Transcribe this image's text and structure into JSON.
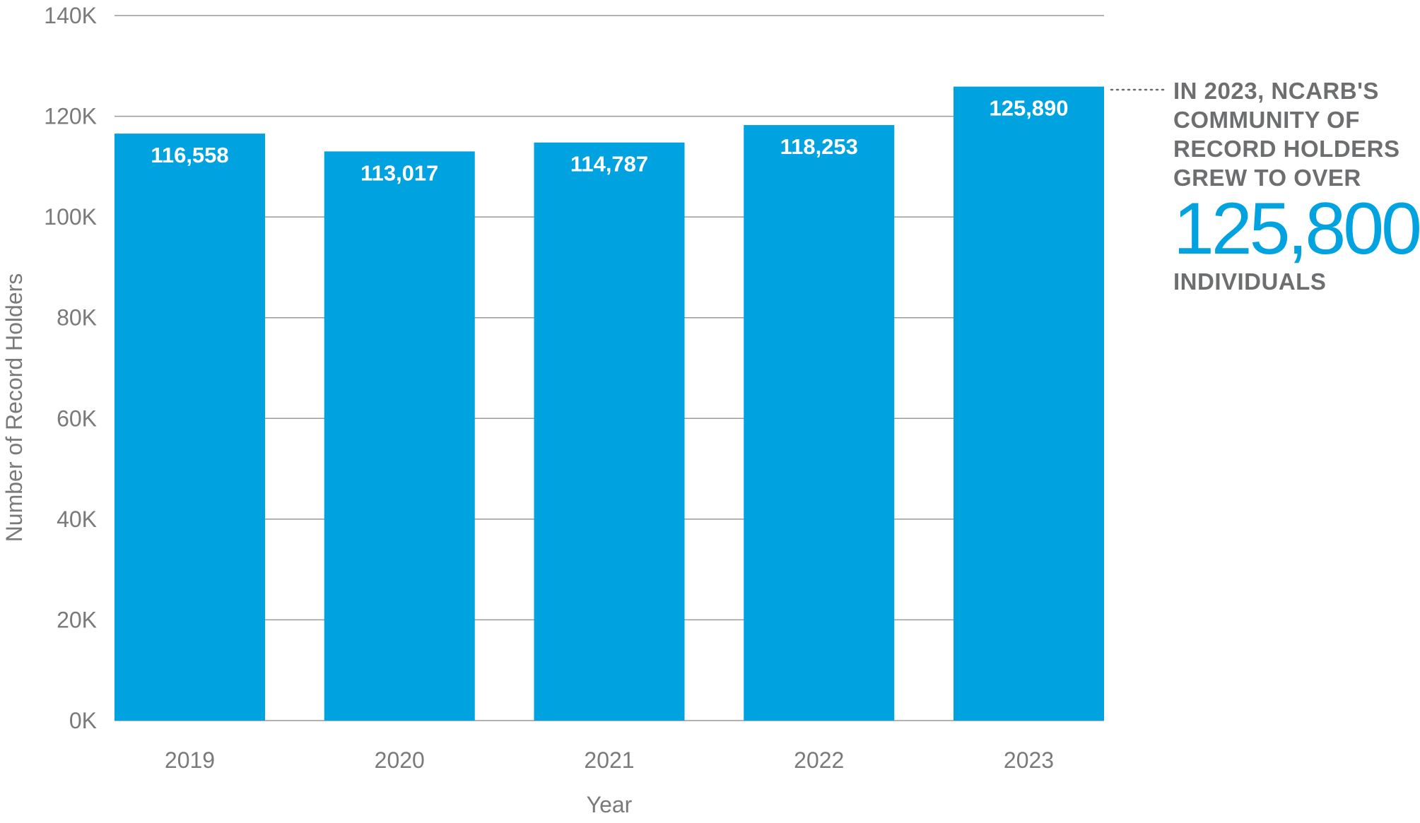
{
  "chart_data": {
    "type": "bar",
    "categories": [
      "2019",
      "2020",
      "2021",
      "2022",
      "2023"
    ],
    "values": [
      116558,
      113017,
      114787,
      118253,
      125890
    ],
    "data_labels": [
      "116,558",
      "113,017",
      "114,787",
      "118,253",
      "125,890"
    ],
    "xlabel": "Year",
    "ylabel": "Number of Record Holders",
    "ylim": [
      0,
      140000
    ],
    "y_ticks": [
      0,
      20000,
      40000,
      60000,
      80000,
      100000,
      120000,
      140000
    ],
    "y_tick_labels": [
      "0K",
      "20K",
      "40K",
      "60K",
      "80K",
      "100K",
      "120K",
      "140K"
    ],
    "grid": true,
    "bar_color": "#00a3e0",
    "annotation": {
      "text": "IN 2023, NCARB'S COMMUNITY OF RECORD HOLDERS GROW TO OVER",
      "lines": [
        "IN 2023, NCARB'S",
        "COMMUNITY OF",
        "RECORD HOLDERS",
        "GREW TO OVER"
      ],
      "highlight": "125,800",
      "suffix": "INDIVIDUALS",
      "highlight_color": "#00a3e0",
      "text_color": "#6d6e70"
    }
  }
}
